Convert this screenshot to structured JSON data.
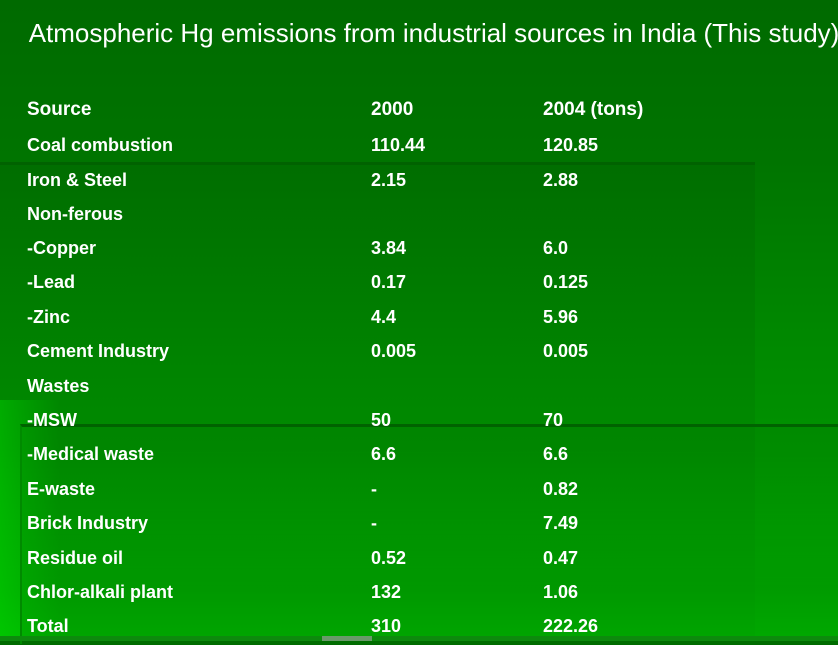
{
  "title": "Atmospheric Hg emissions from industrial sources in India (This study)",
  "table": {
    "headers": [
      "Source",
      "2000",
      "2004 (tons)"
    ],
    "rows": [
      [
        "Coal combustion",
        "110.44",
        "120.85"
      ],
      [
        "Iron & Steel",
        "2.15",
        "2.88"
      ],
      [
        "Non-ferous",
        "",
        ""
      ],
      [
        "-Copper",
        "3.84",
        "6.0"
      ],
      [
        "-Lead",
        "0.17",
        "0.125"
      ],
      [
        "-Zinc",
        "4.4",
        "5.96"
      ],
      [
        "Cement Industry",
        "0.005",
        "0.005"
      ],
      [
        "Wastes",
        "",
        ""
      ],
      [
        "-MSW",
        "50",
        "70"
      ],
      [
        "-Medical waste",
        "6.6",
        "6.6"
      ],
      [
        "E-waste",
        "-",
        "0.82"
      ],
      [
        "Brick Industry",
        "-",
        "7.49"
      ],
      [
        "Residue oil",
        "0.52",
        "0.47"
      ],
      [
        "Chlor-alkali plant",
        "132",
        "1.06"
      ],
      [
        "Total",
        "310",
        "222.26"
      ]
    ]
  },
  "colors": {
    "background_top": "#006a00",
    "background_bottom": "#00a500",
    "text": "#ffffff"
  }
}
